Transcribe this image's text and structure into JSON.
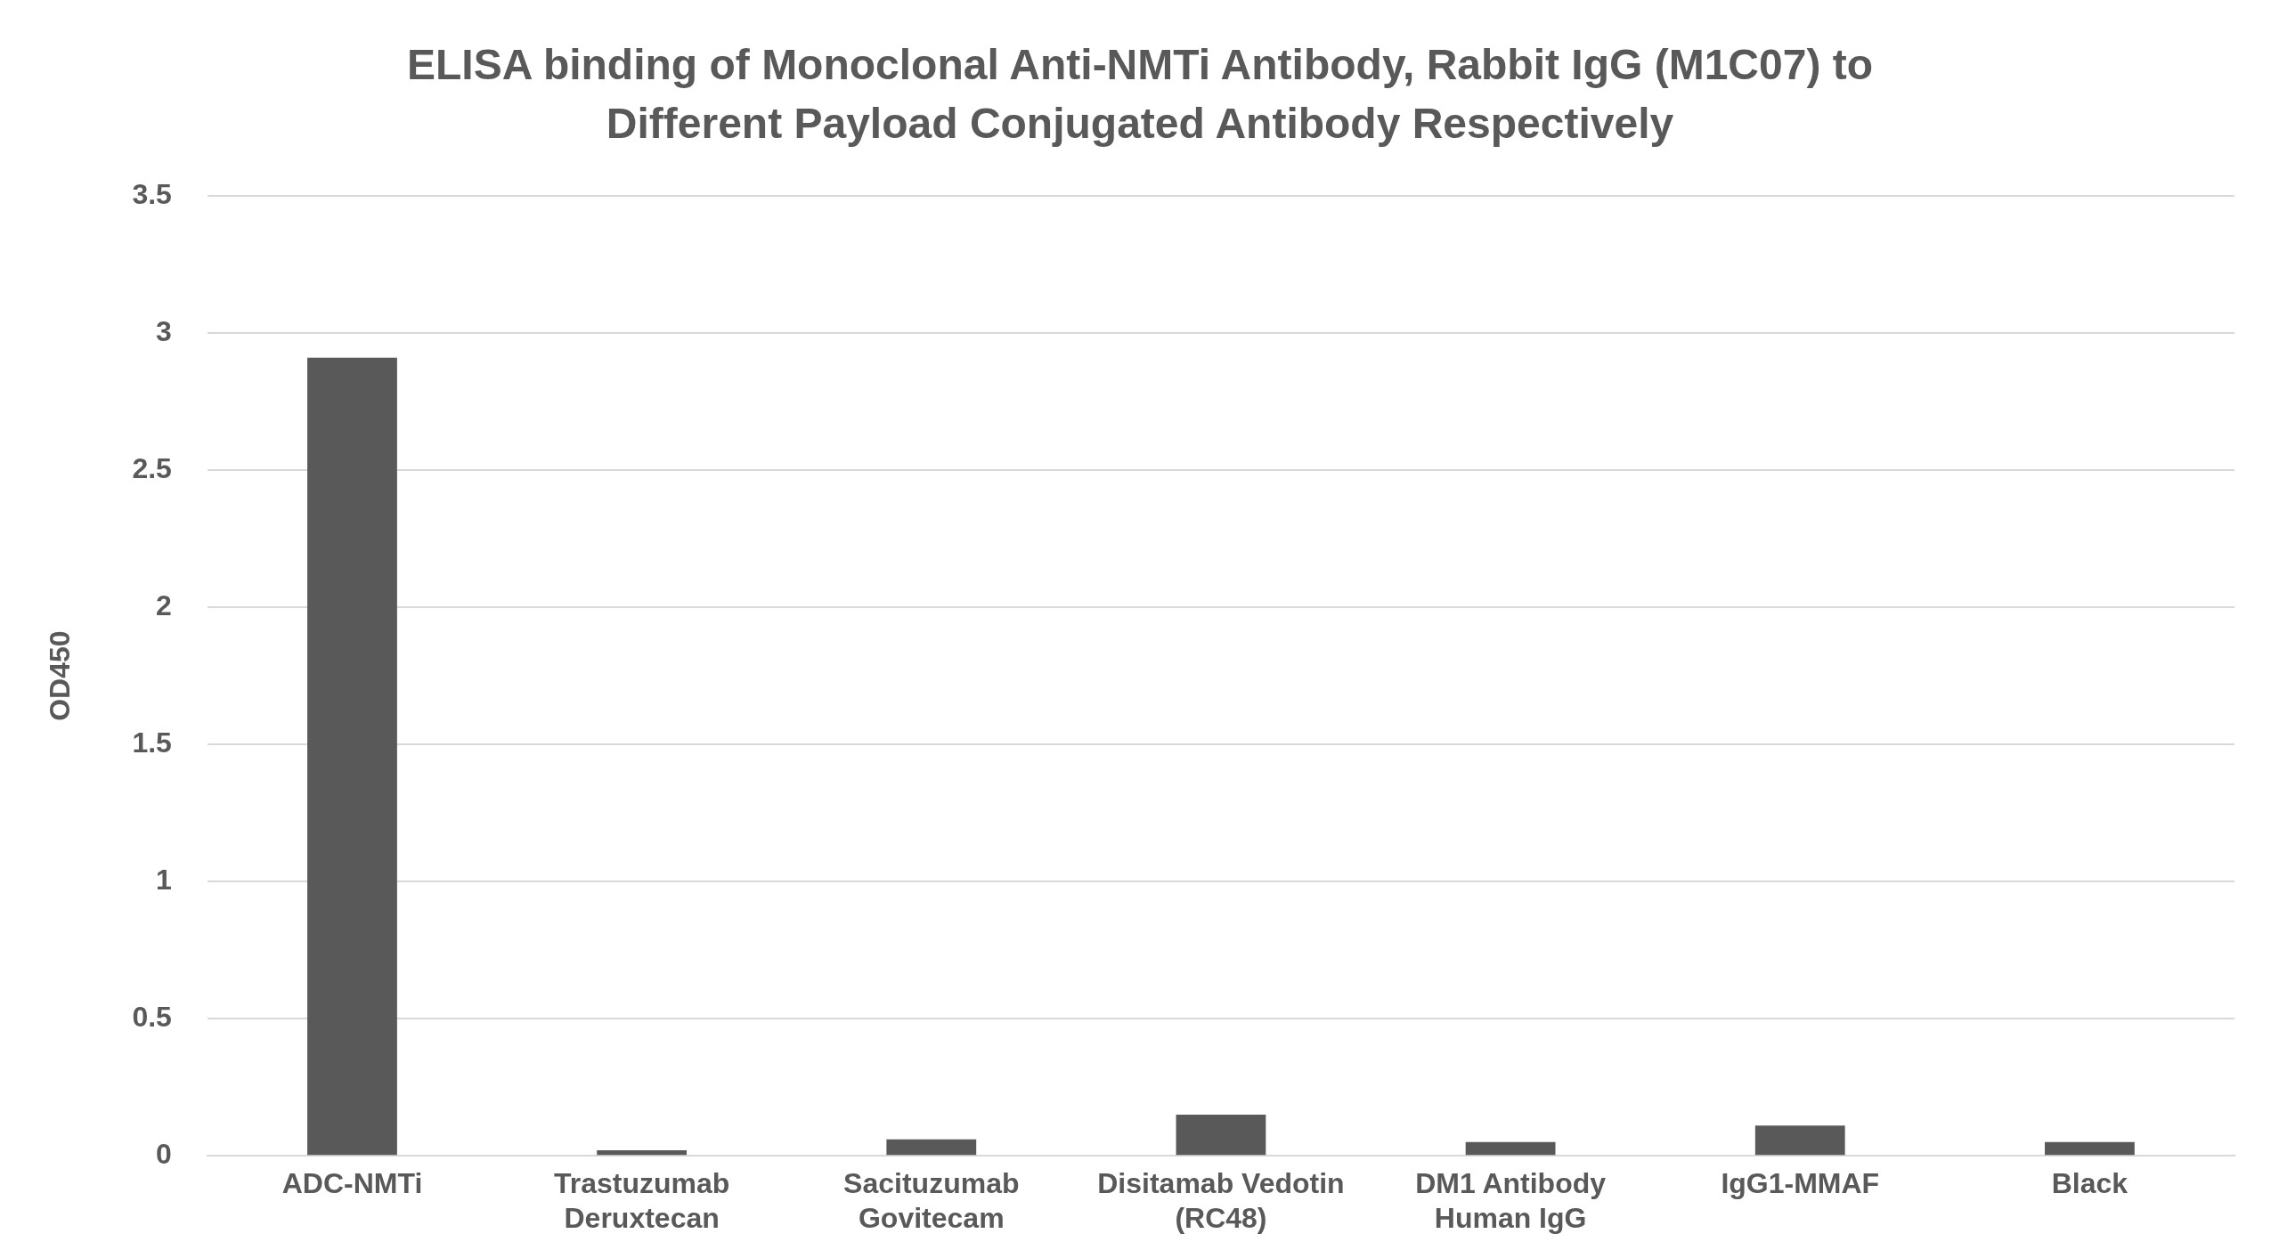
{
  "chart_data": {
    "type": "bar",
    "title": "ELISA binding of Monoclonal Anti-NMTi Antibody, Rabbit IgG (M1C07) to Different Payload Conjugated Antibody Respectively",
    "ylabel": "OD450",
    "categories": [
      "ADC-NMTi",
      "Trastuzumab Deruxtecan",
      "Sacituzumab Govitecam",
      "Disitamab Vedotin (RC48)",
      "DM1 Antibody Human IgG",
      "IgG1-MMAF",
      "Black"
    ],
    "values": [
      2.91,
      0.02,
      0.06,
      0.15,
      0.05,
      0.11,
      0.05
    ],
    "color": "#595959",
    "ylim": [
      0,
      3.5
    ],
    "yticks": [
      0,
      0.5,
      1,
      1.5,
      2,
      2.5,
      3,
      3.5
    ],
    "grid": "y",
    "legend": false
  }
}
